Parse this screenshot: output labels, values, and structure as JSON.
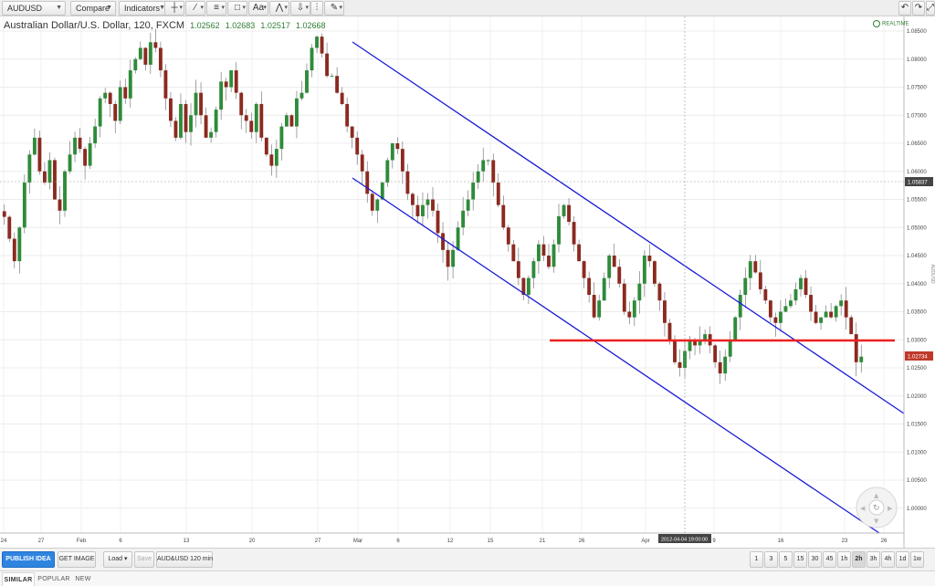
{
  "toolbar": {
    "symbol": "AUDUSD",
    "compare_label": "Compare",
    "indicators_label": "Indicators",
    "font_tool_label": "Aa"
  },
  "chart_header": {
    "title": "Australian Dollar/U.S. Dollar, 120, FXCM",
    "open": "1.02562",
    "high": "1.02683",
    "low": "1.02517",
    "close": "1.02668",
    "realtime_label": "REALTIME"
  },
  "axis": {
    "price_ticks": [
      "1.08500",
      "1.08000",
      "1.07500",
      "1.07000",
      "1.06500",
      "1.06000",
      "1.05500",
      "1.05000",
      "1.04500",
      "1.04000",
      "1.03500",
      "1.03000",
      "1.02500",
      "1.02000",
      "1.01500",
      "1.01000",
      "1.00500",
      "1.00000"
    ],
    "date_ticks": [
      "24",
      "27",
      "Feb",
      "6",
      "13",
      "20",
      "27",
      "Mar",
      "6",
      "12",
      "15",
      "21",
      "26",
      "Apr",
      "9",
      "16",
      "23",
      "26"
    ],
    "crosshair_price": "1.05837",
    "last_price": "1.02734",
    "crosshair_date": "2012-04-04 19:00:00",
    "side_label": "AUDUSD"
  },
  "chart_data": {
    "type": "candlestick",
    "symbol": "AUDUSD",
    "interval": "120",
    "ylim": [
      0.996,
      1.087
    ],
    "last_close": 1.02734,
    "series_close": [
      1.0519,
      1.048,
      1.044,
      1.05,
      1.058,
      1.063,
      1.066,
      1.06,
      1.058,
      1.062,
      1.055,
      1.053,
      1.06,
      1.063,
      1.066,
      1.064,
      1.061,
      1.065,
      1.068,
      1.073,
      1.074,
      1.072,
      1.069,
      1.075,
      1.073,
      1.078,
      1.08,
      1.082,
      1.079,
      1.083,
      1.082,
      1.078,
      1.073,
      1.069,
      1.066,
      1.072,
      1.067,
      1.07,
      1.074,
      1.07,
      1.066,
      1.067,
      1.071,
      1.076,
      1.075,
      1.078,
      1.074,
      1.07,
      1.069,
      1.067,
      1.072,
      1.066,
      1.063,
      1.061,
      1.064,
      1.068,
      1.07,
      1.068,
      1.073,
      1.074,
      1.078,
      1.082,
      1.084,
      1.081,
      1.077,
      1.077,
      1.074,
      1.072,
      1.068,
      1.066,
      1.063,
      1.06,
      1.056,
      1.053,
      1.055,
      1.058,
      1.062,
      1.065,
      1.064,
      1.06,
      1.056,
      1.054,
      1.052,
      1.054,
      1.055,
      1.053,
      1.049,
      1.046,
      1.043,
      1.046,
      1.05,
      1.053,
      1.055,
      1.058,
      1.06,
      1.062,
      1.062,
      1.058,
      1.054,
      1.05,
      1.047,
      1.044,
      1.041,
      1.038,
      1.041,
      1.044,
      1.047,
      1.045,
      1.043,
      1.047,
      1.052,
      1.054,
      1.051,
      1.047,
      1.044,
      1.041,
      1.038,
      1.034,
      1.037,
      1.041,
      1.045,
      1.043,
      1.04,
      1.035,
      1.034,
      1.037,
      1.04,
      1.045,
      1.044,
      1.04,
      1.037,
      1.033,
      1.03,
      1.026,
      1.025,
      1.028,
      1.03,
      1.029,
      1.03,
      1.031,
      1.029,
      1.026,
      1.024,
      1.027,
      1.03,
      1.034,
      1.038,
      1.041,
      1.044,
      1.042,
      1.039,
      1.037,
      1.034,
      1.033,
      1.035,
      1.036,
      1.037,
      1.039,
      1.041,
      1.038,
      1.035,
      1.033,
      1.034,
      1.035,
      1.034,
      1.036,
      1.037,
      1.034,
      1.031,
      1.026,
      1.027
    ],
    "annotations": [
      {
        "type": "trendline",
        "name": "upper-channel-line",
        "color": "#1b1bd6",
        "from": [
          "Mar 1",
          1.0845
        ],
        "to": [
          "Apr 26",
          1.0176
        ]
      },
      {
        "type": "trendline",
        "name": "lower-channel-line",
        "color": "#1b1bd6",
        "from": [
          "Mar 1",
          1.0595
        ],
        "to": [
          "Apr 25",
          0.9965
        ]
      },
      {
        "type": "horizontal",
        "name": "support-line",
        "color": "#ee2020",
        "price": 1.0301
      }
    ],
    "colors": {
      "up": "#2e8b3a",
      "down": "#8b2a20",
      "grid": "#e8e8e8"
    }
  },
  "bottom": {
    "publish_label": "PUBLISH IDEA",
    "get_image_label": "GET IMAGE",
    "load_label": "Load",
    "save_label": "Save",
    "layout_label": "AUD&USD 120 min",
    "intervals": [
      "1",
      "3",
      "5",
      "15",
      "30",
      "45",
      "1h",
      "2h",
      "3h",
      "4h",
      "1d",
      "1w"
    ],
    "active_interval": "2h"
  },
  "tabs": {
    "similar": "SIMILAR",
    "popular": "POPULAR",
    "new": "NEW"
  }
}
